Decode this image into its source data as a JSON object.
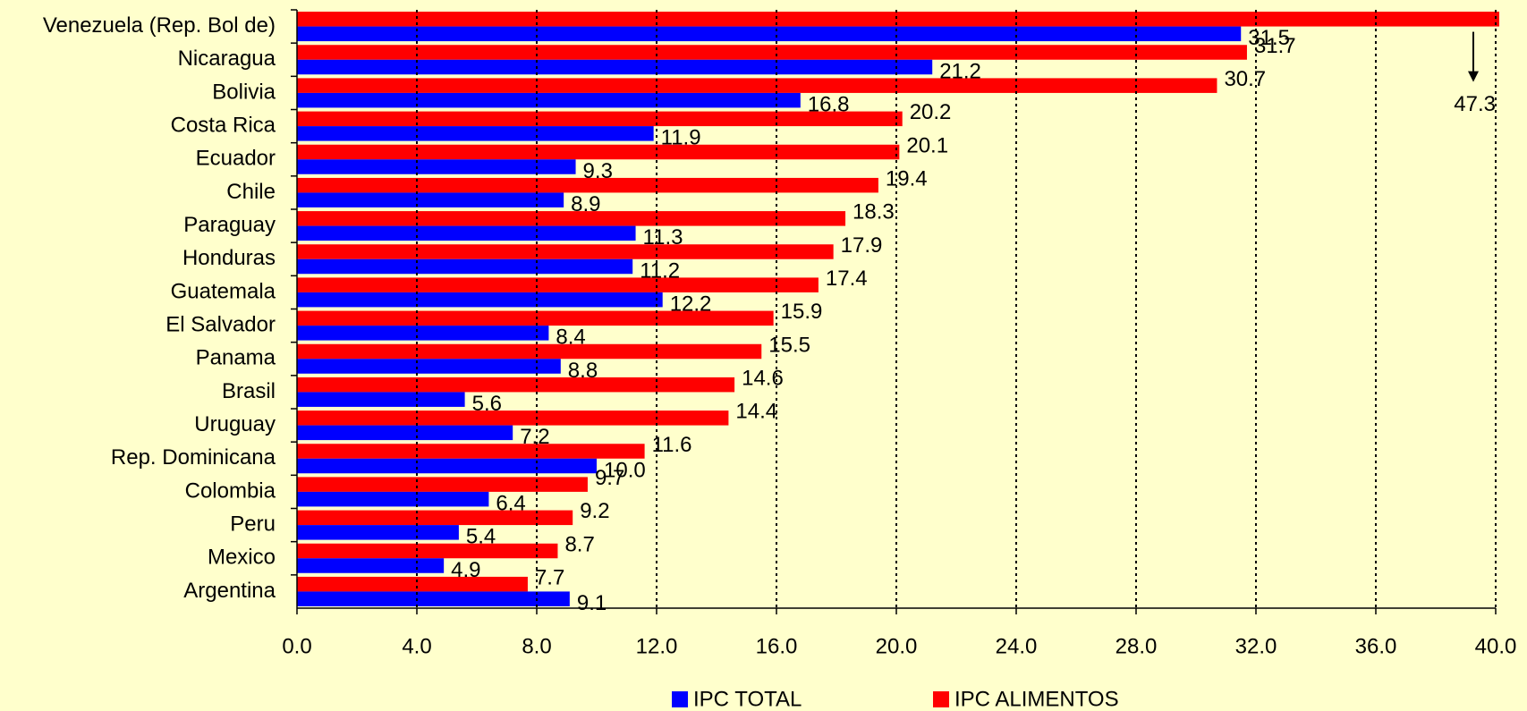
{
  "chart_data": {
    "type": "barh",
    "categories": [
      "Venezuela (Rep. Bol de)",
      "Nicaragua",
      "Bolivia",
      "Costa Rica",
      "Ecuador",
      "Chile",
      "Paraguay",
      "Honduras",
      "Guatemala",
      "El Salvador",
      "Panama",
      "Brasil",
      "Uruguay",
      "Rep. Dominicana",
      "Colombia",
      "Peru",
      "Mexico",
      "Argentina"
    ],
    "series": [
      {
        "name": "IPC TOTAL",
        "color": "#0000ff",
        "values": [
          31.5,
          21.2,
          16.8,
          11.9,
          9.3,
          8.9,
          11.3,
          11.2,
          12.2,
          8.4,
          8.8,
          5.6,
          7.2,
          10.0,
          6.4,
          5.4,
          4.9,
          9.1
        ],
        "value_labels": [
          "31.5",
          "21.2",
          "16.8",
          "11.9",
          "9.3",
          "8.9",
          "11.3",
          "11.2",
          "12.2",
          "8.4",
          "8.8",
          "5.6",
          "7.2",
          "10.0",
          "6.4",
          "5.4",
          "4.9",
          "9.1"
        ]
      },
      {
        "name": "IPC ALIMENTOS",
        "color": "#ff0000",
        "values": [
          47.3,
          31.7,
          30.7,
          20.2,
          20.1,
          19.4,
          18.3,
          17.9,
          17.4,
          15.9,
          15.5,
          14.6,
          14.4,
          11.6,
          9.7,
          9.2,
          8.7,
          7.7
        ],
        "value_labels": [
          "47.3",
          "31.7",
          "30.7",
          "20.2",
          "20.1",
          "19.4",
          "18.3",
          "17.9",
          "17.4",
          "15.9",
          "15.5",
          "14.6",
          "14.4",
          "11.6",
          "9.7",
          "9.2",
          "8.7",
          "7.7"
        ]
      }
    ],
    "xlim": [
      0,
      40
    ],
    "xticks": [
      {
        "value": 0,
        "label": "0.0"
      },
      {
        "value": 4,
        "label": "4.0"
      },
      {
        "value": 8,
        "label": "8.0"
      },
      {
        "value": 12,
        "label": "12.0"
      },
      {
        "value": 16,
        "label": "16.0"
      },
      {
        "value": 20,
        "label": "20.0"
      },
      {
        "value": 24,
        "label": "24.0"
      },
      {
        "value": 28,
        "label": "28.0"
      },
      {
        "value": 32,
        "label": "32.0"
      },
      {
        "value": 36,
        "label": "36.0"
      },
      {
        "value": 40,
        "label": "40.0"
      }
    ],
    "grid": true,
    "legend": "bottom"
  }
}
